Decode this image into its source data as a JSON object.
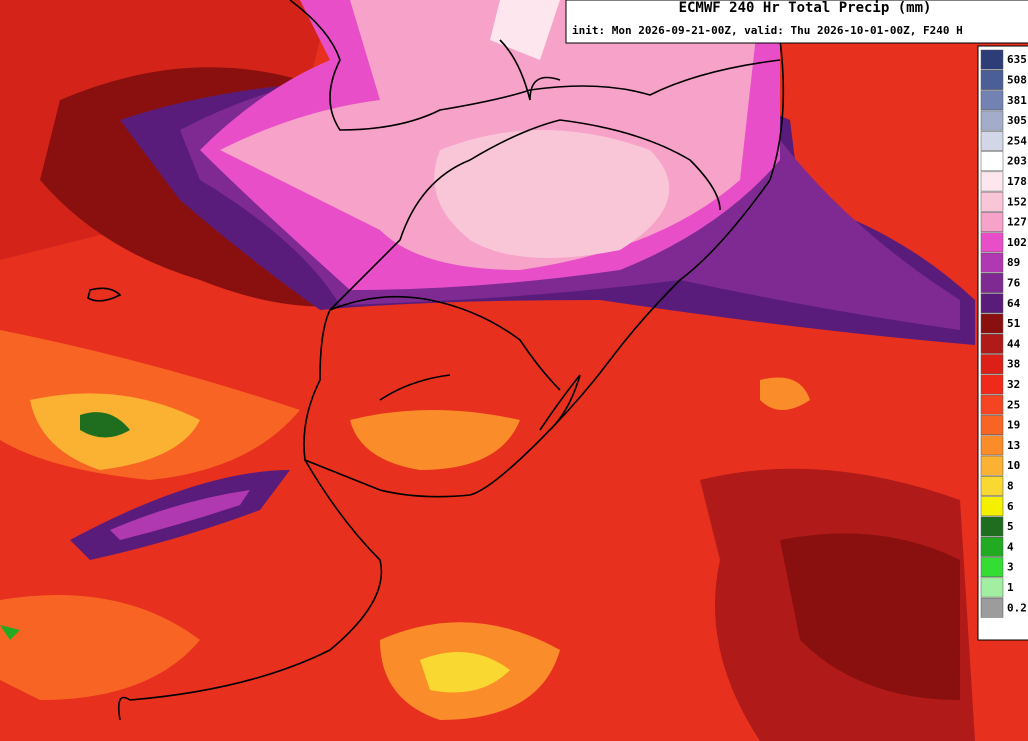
{
  "header": {
    "title": "ECMWF 240 Hr Total Precip (mm)",
    "subtitle": "init: Mon 2026-09-21-00Z, valid: Thu 2026-10-01-00Z, F240 H"
  },
  "legend": {
    "items": [
      {
        "label": "635",
        "color": "#2c3d78"
      },
      {
        "label": "508",
        "color": "#4b5e98"
      },
      {
        "label": "381",
        "color": "#7282b2"
      },
      {
        "label": "305",
        "color": "#a3adca"
      },
      {
        "label": "254",
        "color": "#d2d6e6"
      },
      {
        "label": "203",
        "color": "#ffffff"
      },
      {
        "label": "178",
        "color": "#fde6ee"
      },
      {
        "label": "152",
        "color": "#f9c6d8"
      },
      {
        "label": "127",
        "color": "#f7a2c8"
      },
      {
        "label": "102",
        "color": "#e84ec8"
      },
      {
        "label": "89",
        "color": "#b038b0"
      },
      {
        "label": "76",
        "color": "#7e2a92"
      },
      {
        "label": "64",
        "color": "#5a1c7a"
      },
      {
        "label": "51",
        "color": "#8a1010"
      },
      {
        "label": "44",
        "color": "#b01a18"
      },
      {
        "label": "38",
        "color": "#dc2018"
      },
      {
        "label": "32",
        "color": "#f02a1a"
      },
      {
        "label": "25",
        "color": "#f44422"
      },
      {
        "label": "19",
        "color": "#f86424"
      },
      {
        "label": "13",
        "color": "#fa8c2a"
      },
      {
        "label": "10",
        "color": "#fbb232"
      },
      {
        "label": "8",
        "color": "#fad832"
      },
      {
        "label": "6",
        "color": "#f4f000"
      },
      {
        "label": "5",
        "color": "#1f6e1f"
      },
      {
        "label": "4",
        "color": "#22aa22"
      },
      {
        "label": "3",
        "color": "#34dd34"
      },
      {
        "label": "1",
        "color": "#a2eea2"
      },
      {
        "label": "0.2",
        "color": "#9c9c9c"
      }
    ]
  }
}
